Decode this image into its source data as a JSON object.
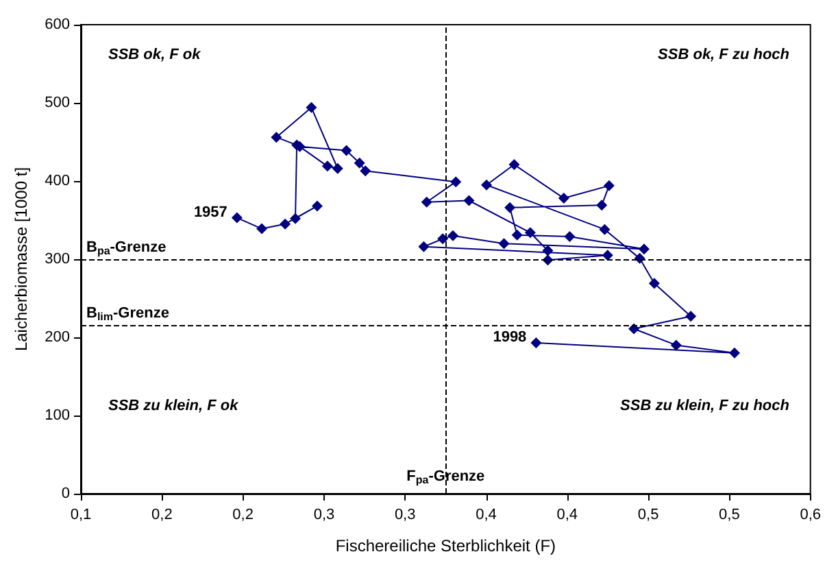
{
  "chart_data": {
    "type": "line",
    "xlabel": "Fischereiliche Sterblichkeit (F)",
    "ylabel": "Laicherbiomasse [1000 t]",
    "x": [
      0.207,
      0.224,
      0.24,
      0.262,
      0.247,
      0.248,
      0.234,
      0.258,
      0.276,
      0.269,
      0.25,
      0.282,
      0.291,
      0.295,
      0.357,
      0.337,
      0.366,
      0.408,
      0.42,
      0.42,
      0.461,
      0.335,
      0.348,
      0.355,
      0.39,
      0.486,
      0.435,
      0.399,
      0.394,
      0.457,
      0.462,
      0.431,
      0.397,
      0.378,
      0.459,
      0.483,
      0.493,
      0.518,
      0.479,
      0.508,
      0.548,
      0.412
    ],
    "series": [
      {
        "color": "#000080",
        "values": [
          353,
          339,
          345,
          368,
          352,
          446,
          456,
          494,
          416,
          419,
          444,
          439,
          423,
          413,
          399,
          373,
          375,
          334,
          311,
          299,
          305,
          316,
          326,
          330,
          320,
          313,
          329,
          331,
          366,
          369,
          394,
          378,
          421,
          395,
          338,
          301,
          269,
          227,
          211,
          190,
          180,
          193
        ]
      }
    ],
    "marker": "diamond",
    "line_style": "solid",
    "grid": false,
    "xlim": [
      0.1,
      0.6
    ],
    "xticks": [
      {
        "value": 0.1,
        "label": "0,1"
      },
      {
        "value": 0.1556,
        "label": "0,2"
      },
      {
        "value": 0.2111,
        "label": "0,2"
      },
      {
        "value": 0.2667,
        "label": "0,3"
      },
      {
        "value": 0.3222,
        "label": "0,3"
      },
      {
        "value": 0.3778,
        "label": "0,4"
      },
      {
        "value": 0.4333,
        "label": "0,4"
      },
      {
        "value": 0.4889,
        "label": "0,5"
      },
      {
        "value": 0.5444,
        "label": "0,5"
      },
      {
        "value": 0.6,
        "label": "0,6"
      }
    ],
    "ylim": [
      0,
      600
    ],
    "yticks": [
      0,
      100,
      200,
      300,
      400,
      500,
      600
    ],
    "ref_lines": [
      {
        "axis": "y",
        "value": 300,
        "label": "B$_{pa}$-Grenze",
        "color": "#000000",
        "line_style": "dashed"
      },
      {
        "axis": "y",
        "value": 216,
        "label": "B$_{lim}$-Grenze",
        "color": "#000000",
        "line_style": "dashed"
      },
      {
        "axis": "x",
        "value": 0.35,
        "label": "F$_{pa}$-Grenze",
        "color": "#000000",
        "line_style": "dashed"
      }
    ],
    "annotations": [
      "SSB ok, F ok",
      "SSB ok, F zu hoch",
      "SSB zu klein, F ok",
      "SSB zu klein, F zu hoch",
      {
        "text": "1957",
        "x": 0.207,
        "y": 353
      },
      {
        "text": "1998",
        "x": 0.412,
        "y": 193
      }
    ]
  }
}
